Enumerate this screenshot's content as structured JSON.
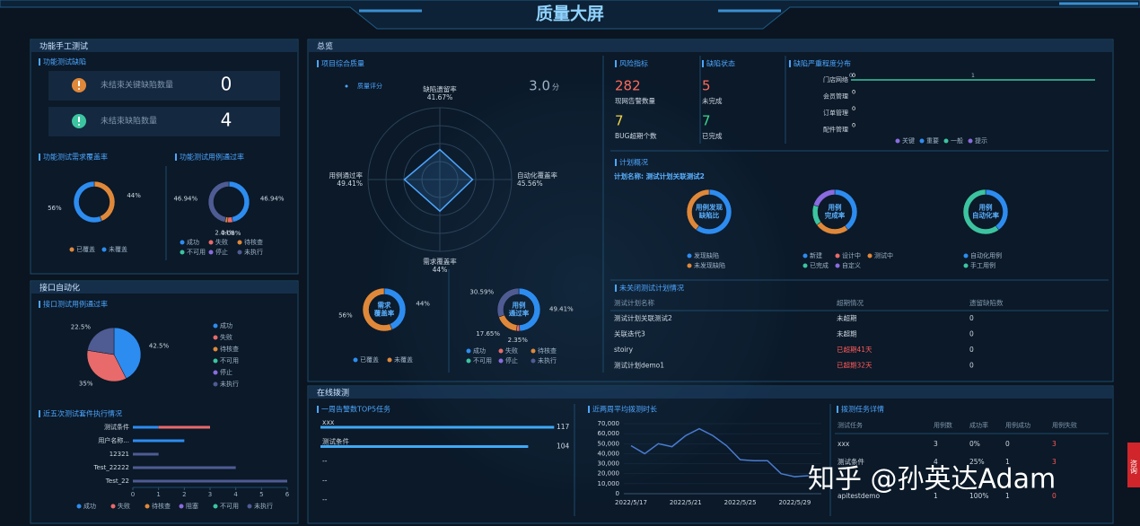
{
  "header": {
    "title": "质量大屏"
  },
  "manual": {
    "title": "功能手工测试",
    "defects": {
      "title": "功能测试缺陷",
      "items": [
        {
          "label": "未结束关键缺陷数量",
          "value": 0,
          "color": "#e0883a"
        },
        {
          "label": "未结束缺陷数量",
          "value": 4,
          "color": "#3cc4a0"
        }
      ]
    },
    "req_coverage": {
      "type": "pie",
      "title": "功能测试需求覆盖率",
      "categories": [
        "已覆盖",
        "未覆盖"
      ],
      "values": [
        44,
        56
      ],
      "value_labels": [
        "44%",
        "56%"
      ],
      "colors": [
        "#e0883a",
        "#2d8cf0"
      ]
    },
    "case_pass": {
      "type": "pie",
      "title": "功能测试用例通过率",
      "categories": [
        "成功",
        "失败",
        "待核查",
        "不可用",
        "停止",
        "未执行"
      ],
      "values": [
        46.94,
        4.08,
        2.04,
        0,
        0,
        46.94
      ],
      "value_labels": [
        "46.94%",
        "4.08%",
        "2.04%",
        null,
        null,
        "46.94%"
      ],
      "colors": [
        "#2d8cf0",
        "#e86a6a",
        "#e0883a",
        "#3cc4a0",
        "#8a6be0",
        "#4f5b93"
      ]
    }
  },
  "api": {
    "title": "接口自动化",
    "case_pass": {
      "type": "pie",
      "title": "接口测试用例通过率",
      "categories": [
        "成功",
        "失败",
        "待核查",
        "不可用",
        "停止",
        "未执行"
      ],
      "values": [
        42.5,
        35,
        0,
        0,
        0,
        22.5
      ],
      "value_labels": [
        "42.5%",
        "35%",
        null,
        null,
        null,
        "22.5%"
      ],
      "colors": [
        "#2d8cf0",
        "#e86a6a",
        "#e0883a",
        "#3cc4a0",
        "#8a6be0",
        "#4f5b93"
      ]
    },
    "suites": {
      "type": "bar",
      "orientation": "horizontal",
      "stacked": true,
      "title": "近五次测试套件执行情况",
      "categories": [
        "测试条件",
        "用户名称...",
        "12321",
        "Test_22222",
        "Test_22"
      ],
      "series": [
        {
          "name": "成功",
          "color": "#2d8cf0",
          "values": [
            1,
            2,
            0,
            0,
            0
          ]
        },
        {
          "name": "失败",
          "color": "#e86a6a",
          "values": [
            2,
            0,
            0,
            0,
            0
          ]
        },
        {
          "name": "待核查",
          "color": "#e0883a",
          "values": [
            0,
            0,
            0,
            0,
            0
          ]
        },
        {
          "name": "阻塞",
          "color": "#8a6be0",
          "values": [
            0,
            0,
            0,
            0,
            0
          ]
        },
        {
          "name": "不可用",
          "color": "#3cc4a0",
          "values": [
            0,
            0,
            0,
            0,
            0
          ]
        },
        {
          "name": "未执行",
          "color": "#4f5b93",
          "values": [
            0,
            0,
            1,
            4,
            6
          ]
        }
      ],
      "xlim": [
        0,
        6
      ],
      "xticks": [
        0,
        1,
        2,
        3,
        4,
        5,
        6
      ]
    }
  },
  "overview": {
    "title": "总览",
    "quality": {
      "type": "radar",
      "title": "项目综合质量",
      "score_label": "质量评分",
      "score": "3.0",
      "score_unit": "分",
      "categories": [
        "缺陷遗留率",
        "自动化覆盖率",
        "需求覆盖率",
        "用例通过率"
      ],
      "values": [
        41.67,
        45.56,
        44,
        49.41
      ],
      "value_labels": [
        "41.67%",
        "45.56%",
        "44%",
        "49.41%"
      ],
      "rlim": [
        0,
        100
      ],
      "color": "#4da6ff"
    },
    "req_coverage": {
      "type": "pie",
      "center_label": [
        "需求",
        "覆盖率"
      ],
      "categories": [
        "已覆盖",
        "未覆盖"
      ],
      "values": [
        44,
        56
      ],
      "value_labels": [
        "44%",
        "56%"
      ],
      "colors": [
        "#2d8cf0",
        "#e0883a"
      ]
    },
    "case_pass": {
      "type": "pie",
      "center_label": [
        "用例",
        "通过率"
      ],
      "categories": [
        "成功",
        "失败",
        "待核查",
        "不可用",
        "停止",
        "未执行"
      ],
      "values": [
        49.41,
        2.35,
        17.65,
        0,
        0,
        30.59
      ],
      "value_labels": [
        "49.41%",
        "2.35%",
        "17.65%",
        null,
        null,
        "30.59%"
      ],
      "colors": [
        "#2d8cf0",
        "#e86a6a",
        "#e0883a",
        "#3cc4a0",
        "#8a6be0",
        "#4f5b93"
      ]
    },
    "risk": {
      "title": "风险指标",
      "items": [
        {
          "label": "现网告警数量",
          "value": 282,
          "color": "#ff6b5b"
        },
        {
          "label": "BUG超期个数",
          "value": 7,
          "color": "#f5d547"
        }
      ]
    },
    "defect_status": {
      "title": "缺陷状态",
      "items": [
        {
          "label": "未完成",
          "value": 5,
          "color": "#ff6b5b"
        },
        {
          "label": "已完成",
          "value": 7,
          "color": "#3cd68c"
        }
      ]
    },
    "severity": {
      "type": "bar",
      "orientation": "horizontal",
      "title": "缺陷严重程度分布",
      "categories": [
        "门店网络",
        "会员管理",
        "订单管理",
        "配件管理"
      ],
      "values": [
        0,
        0,
        0,
        0
      ],
      "xlim": [
        0,
        2
      ],
      "xticks": [
        0,
        1
      ],
      "color": "#3cc4a0",
      "legend": [
        {
          "name": "关键",
          "color": "#8a6be0"
        },
        {
          "name": "重要",
          "color": "#2d8cf0"
        },
        {
          "name": "一般",
          "color": "#3cc4a0"
        },
        {
          "name": "提示",
          "color": "#8a6be0"
        }
      ]
    },
    "plan": {
      "title": "计划概况",
      "plan_name": "计划名称: 测试计划关联测试2",
      "charts": [
        {
          "type": "pie",
          "center_label": [
            "用例发现",
            "缺陷比"
          ],
          "categories": [
            "发现缺陷",
            "未发现缺陷"
          ],
          "values": [
            60,
            40
          ],
          "colors": [
            "#2d8cf0",
            "#e0883a"
          ]
        },
        {
          "type": "pie",
          "center_label": [
            "用例",
            "完成率"
          ],
          "categories": [
            "新建",
            "设计中",
            "测试中",
            "已完成",
            "自定义"
          ],
          "values": [
            40,
            0,
            25,
            15,
            20
          ],
          "colors": [
            "#2d8cf0",
            "#e86a6a",
            "#e0883a",
            "#3cc4a0",
            "#8a6be0"
          ]
        },
        {
          "type": "pie",
          "center_label": [
            "用例",
            "自动化率"
          ],
          "categories": [
            "自动化用例",
            "手工用例"
          ],
          "values": [
            40,
            60
          ],
          "colors": [
            "#2d8cf0",
            "#3cc4a0"
          ]
        }
      ]
    },
    "open_plans": {
      "title": "未关闭测试计划情况",
      "columns": [
        "测试计划名称",
        "超期情况",
        "遗留缺陷数"
      ],
      "rows": [
        [
          "测试计划关联测试2",
          "未超期",
          0
        ],
        [
          "关联迭代3",
          "未超期",
          0
        ],
        [
          "stoiry",
          "已超期41天",
          0
        ],
        [
          "测试计划demo1",
          "已超期32天",
          0
        ]
      ],
      "row_colors": [
        "#cfd8e3",
        "#cfd8e3",
        "#ff5a5a",
        "#ff5a5a"
      ]
    }
  },
  "online": {
    "title": "在线拨测",
    "top5": {
      "type": "bar",
      "orientation": "horizontal",
      "title": "一周告警数TOP5任务",
      "categories": [
        "xxx",
        "测试条件",
        "--",
        "--",
        "--"
      ],
      "values": [
        117,
        104,
        null,
        null,
        null
      ],
      "xlim": [
        0,
        120
      ],
      "color": "#3fa9f5"
    },
    "duration": {
      "type": "line",
      "title": "近两周平均拨测时长",
      "categories": [
        "2022/5/17",
        null,
        null,
        null,
        "2022/5/21",
        null,
        null,
        null,
        "2022/5/25",
        null,
        null,
        null,
        "2022/5/29",
        null
      ],
      "values": [
        48000,
        40000,
        50000,
        47000,
        58000,
        65000,
        58000,
        48000,
        34000,
        33000,
        33000,
        20000,
        17000,
        18000
      ],
      "ylim": [
        0,
        70000
      ],
      "yticks": [
        0,
        {
          "value": 10000,
          "label": "10,000"
        },
        {
          "value": 20000,
          "label": "20,000"
        },
        {
          "value": 30000,
          "label": "30,000"
        },
        {
          "value": 40000,
          "label": "40,000"
        },
        {
          "value": 50000,
          "label": "50,000"
        },
        {
          "value": 60000,
          "label": "60,000"
        },
        {
          "value": 70000,
          "label": "70,000"
        }
      ],
      "color": "#4a7bd0"
    },
    "tasks": {
      "title": "拨测任务详情",
      "columns": [
        "测试任务",
        "用例数",
        "成功率",
        "用例成功",
        "用例失败"
      ],
      "rows": [
        [
          "xxx",
          3,
          "0%",
          0,
          3
        ],
        [
          "测试条件",
          4,
          "25%",
          1,
          3
        ],
        [
          "apitestdemo",
          1,
          "100%",
          1,
          0
        ]
      ],
      "column_colors": [
        "#cfd8e3",
        "#cfd8e3",
        "#cfd8e3",
        "#cfd8e3",
        "#ff5a5a"
      ]
    }
  },
  "watermark": "知乎 @孙英达Adam",
  "side_tab": "咨询"
}
